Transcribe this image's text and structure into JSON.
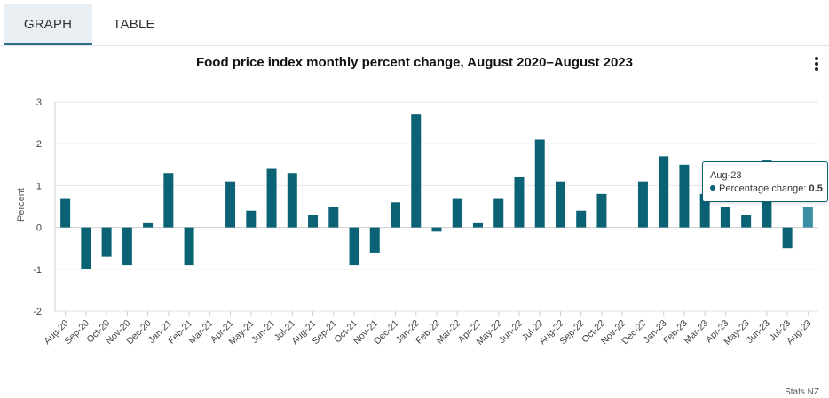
{
  "tabs": [
    {
      "label": "GRAPH",
      "active": true
    },
    {
      "label": "TABLE",
      "active": false
    }
  ],
  "menu_icon": "kebab-menu-icon",
  "chart_data": {
    "type": "bar",
    "title": "Food price index monthly percent change, August 2020–August 2023",
    "ylabel": "Percent",
    "xlabel": "",
    "ylim": [
      -2,
      3
    ],
    "yticks": [
      3,
      2,
      1,
      0,
      -1,
      -2
    ],
    "grid": true,
    "color": "#0b6275",
    "highlight_color": "#3a8da3",
    "categories": [
      "Aug-20",
      "Sep-20",
      "Oct-20",
      "Nov-20",
      "Dec-20",
      "Jan-21",
      "Feb-21",
      "Mar-21",
      "Apr-21",
      "May-21",
      "Jun-21",
      "Jul-21",
      "Aug-21",
      "Sep-21",
      "Oct-21",
      "Nov-21",
      "Dec-21",
      "Jan-22",
      "Feb-22",
      "Mar-22",
      "Apr-22",
      "May-22",
      "Jun-22",
      "Jul-22",
      "Aug-22",
      "Sep-22",
      "Oct-22",
      "Nov-22",
      "Dec-22",
      "Jan-23",
      "Feb-23",
      "Mar-23",
      "Apr-23",
      "May-23",
      "Jun-23",
      "Jul-23",
      "Aug-23"
    ],
    "series": [
      {
        "values": [
          0.7,
          -1.0,
          -0.7,
          -0.9,
          0.1,
          1.3,
          -0.9,
          0,
          1.1,
          0.4,
          1.4,
          1.3,
          0.3,
          0.5,
          -0.9,
          -0.6,
          0.6,
          2.7,
          -0.1,
          0.7,
          0.1,
          0.7,
          1.2,
          2.1,
          1.1,
          0.4,
          0.8,
          0,
          1.1,
          1.7,
          1.5,
          0.8,
          0.5,
          0.3,
          1.6,
          -0.5,
          0.5
        ]
      }
    ]
  },
  "tooltip": {
    "date": "Aug-23",
    "label": "Percentage change:",
    "value": "0.5"
  },
  "credit": "Stats NZ"
}
